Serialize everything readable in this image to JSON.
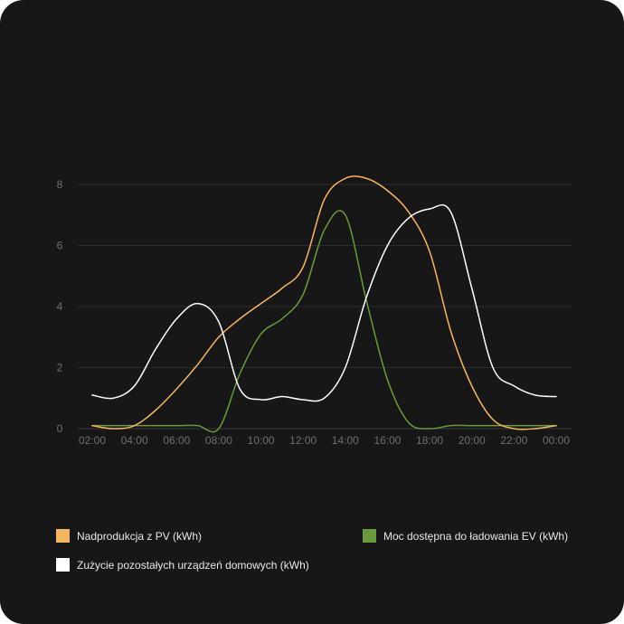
{
  "chart_data": {
    "type": "line",
    "categories": [
      "02:00",
      "03:00",
      "04:00",
      "05:00",
      "06:00",
      "07:00",
      "08:00",
      "09:00",
      "10:00",
      "11:00",
      "12:00",
      "13:00",
      "14:00",
      "15:00",
      "16:00",
      "17:00",
      "18:00",
      "19:00",
      "20:00",
      "21:00",
      "22:00",
      "23:00",
      "00:00"
    ],
    "x_ticks": [
      "02:00",
      "04:00",
      "06:00",
      "08:00",
      "10:00",
      "12:00",
      "14:00",
      "16:00",
      "18:00",
      "20:00",
      "22:00",
      "00:00"
    ],
    "y_ticks": [
      "0",
      "2",
      "4",
      "6",
      "8"
    ],
    "ylim": [
      0,
      8
    ],
    "grid": true,
    "legend_position": "bottom",
    "series": [
      {
        "name": "Nadprodukcja z PV (kWh)",
        "color": "#f4b75e",
        "values": [
          0.1,
          0.0,
          0.1,
          0.6,
          1.3,
          2.1,
          3.0,
          3.6,
          4.1,
          4.6,
          5.3,
          7.5,
          8.2,
          8.2,
          7.8,
          7.1,
          5.8,
          3.2,
          1.4,
          0.3,
          0.0,
          0.0,
          0.1
        ]
      },
      {
        "name": "Moc dostępna do ładowania EV (kWh)",
        "color": "#6a9a3a",
        "values": [
          0.1,
          0.1,
          0.1,
          0.1,
          0.1,
          0.1,
          0.0,
          1.8,
          3.1,
          3.6,
          4.4,
          6.5,
          7.0,
          4.2,
          1.6,
          0.2,
          0.0,
          0.1,
          0.1,
          0.1,
          0.1,
          0.1,
          0.1
        ]
      },
      {
        "name": "Zużycie pozostałych urządzeń domowych (kWh)",
        "color": "#ffffff",
        "values": [
          1.1,
          1.0,
          1.4,
          2.6,
          3.6,
          4.1,
          3.5,
          1.3,
          0.95,
          1.05,
          0.95,
          1.0,
          2.0,
          4.3,
          6.0,
          6.9,
          7.2,
          7.1,
          4.6,
          2.0,
          1.4,
          1.1,
          1.05
        ]
      }
    ]
  }
}
